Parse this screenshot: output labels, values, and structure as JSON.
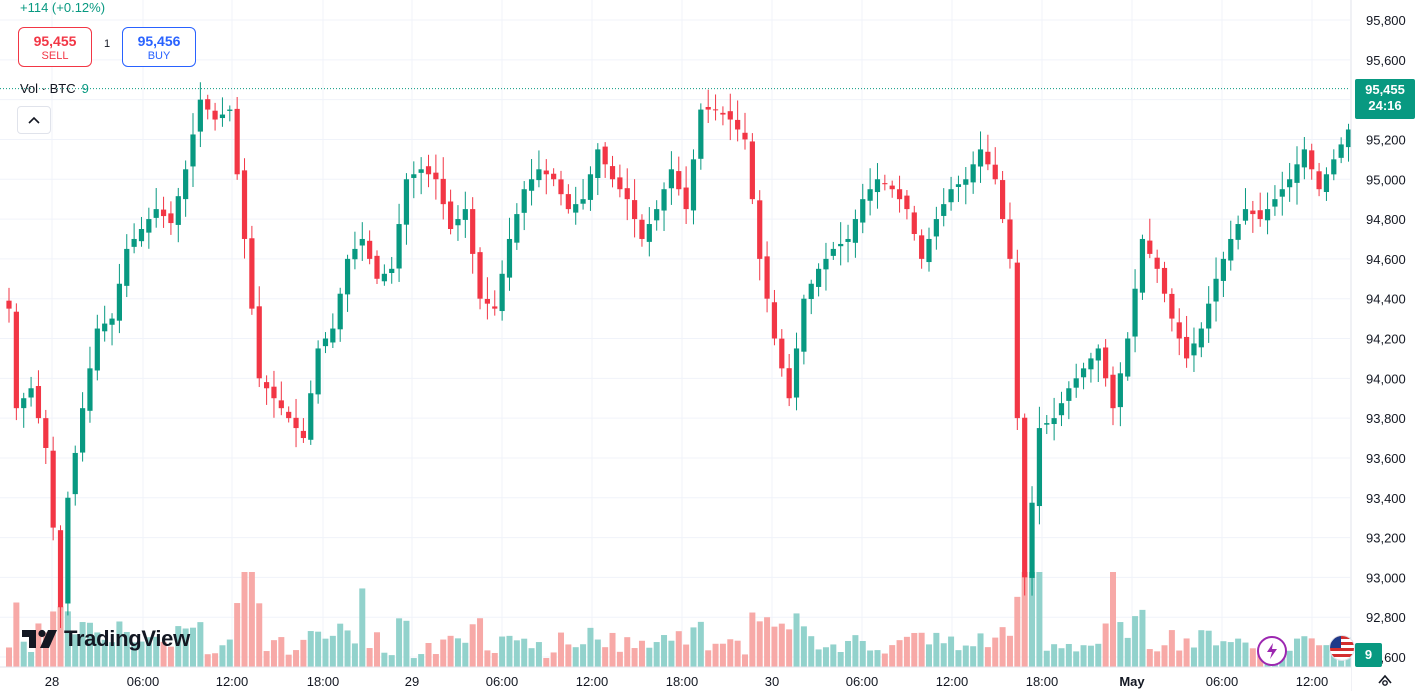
{
  "header": {
    "change": "+114 (+0.12%)",
    "sell_price": "95,455",
    "sell_label": "SELL",
    "buy_price": "95,456",
    "buy_label": "BUY",
    "spread": "1"
  },
  "volume_legend": {
    "label": "Vol · BTC",
    "value": "9"
  },
  "price_axis": {
    "ticks": [
      "95,800",
      "95,600",
      "95,400",
      "95,200",
      "95,000",
      "94,800",
      "94,600",
      "94,400",
      "94,200",
      "94,000",
      "93,800",
      "93,600",
      "93,400",
      "93,200",
      "93,000",
      "92,800",
      "92,600"
    ],
    "last_price": "95,455",
    "countdown": "24:16",
    "volume_tag": "9"
  },
  "time_axis": {
    "ticks": [
      "28",
      "06:00",
      "12:00",
      "18:00",
      "29",
      "06:00",
      "12:00",
      "18:00",
      "30",
      "06:00",
      "12:00",
      "18:00",
      "May",
      "06:00",
      "12:00"
    ]
  },
  "branding": {
    "logo_text": "TradingView"
  },
  "colors": {
    "up": "#089981",
    "down": "#f23645",
    "up_volume": "#92d2cc",
    "down_volume": "#f7a9a7",
    "grid": "#f0f3fa"
  },
  "icons": [
    "collapse-chevron-up-icon",
    "tradingview-logo-icon",
    "lightning-bolt-icon",
    "us-flag-icon",
    "settings-icon"
  ],
  "chart_data": {
    "type": "candlestick",
    "title": "",
    "ylim": [
      92600,
      95800
    ],
    "interval_minutes": 30,
    "last_price": 95455,
    "close_anchors": [
      [
        0,
        94350
      ],
      [
        1,
        93850
      ],
      [
        3,
        93950
      ],
      [
        5,
        93650
      ],
      [
        7,
        92850
      ],
      [
        8,
        93400
      ],
      [
        10,
        93850
      ],
      [
        12,
        94250
      ],
      [
        14,
        94300
      ],
      [
        16,
        94650
      ],
      [
        18,
        94750
      ],
      [
        20,
        94850
      ],
      [
        22,
        94780
      ],
      [
        24,
        95050
      ],
      [
        26,
        95400
      ],
      [
        28,
        95300
      ],
      [
        30,
        95350
      ],
      [
        32,
        94700
      ],
      [
        34,
        94000
      ],
      [
        36,
        93900
      ],
      [
        38,
        93800
      ],
      [
        40,
        93700
      ],
      [
        42,
        94150
      ],
      [
        44,
        94250
      ],
      [
        46,
        94600
      ],
      [
        48,
        94700
      ],
      [
        50,
        94500
      ],
      [
        52,
        94550
      ],
      [
        54,
        95000
      ],
      [
        56,
        95050
      ],
      [
        58,
        95000
      ],
      [
        60,
        94750
      ],
      [
        62,
        94850
      ],
      [
        64,
        94400
      ],
      [
        66,
        94350
      ],
      [
        68,
        94700
      ],
      [
        70,
        94950
      ],
      [
        72,
        95050
      ],
      [
        74,
        95000
      ],
      [
        76,
        94850
      ],
      [
        78,
        94900
      ],
      [
        80,
        95150
      ],
      [
        82,
        95000
      ],
      [
        84,
        94900
      ],
      [
        86,
        94700
      ],
      [
        88,
        94850
      ],
      [
        90,
        95050
      ],
      [
        92,
        94850
      ],
      [
        94,
        95350
      ],
      [
        96,
        95350
      ],
      [
        98,
        95300
      ],
      [
        100,
        95200
      ],
      [
        102,
        94600
      ],
      [
        104,
        94200
      ],
      [
        106,
        93900
      ],
      [
        108,
        94400
      ],
      [
        110,
        94550
      ],
      [
        112,
        94650
      ],
      [
        114,
        94700
      ],
      [
        116,
        94900
      ],
      [
        118,
        95000
      ],
      [
        120,
        94950
      ],
      [
        122,
        94850
      ],
      [
        124,
        94600
      ],
      [
        126,
        94800
      ],
      [
        128,
        94950
      ],
      [
        130,
        95000
      ],
      [
        132,
        95150
      ],
      [
        134,
        95000
      ],
      [
        136,
        94600
      ],
      [
        138,
        93000
      ],
      [
        140,
        93750
      ],
      [
        142,
        93800
      ],
      [
        144,
        93950
      ],
      [
        146,
        94050
      ],
      [
        148,
        94150
      ],
      [
        150,
        93850
      ],
      [
        152,
        94200
      ],
      [
        154,
        94700
      ],
      [
        156,
        94550
      ],
      [
        158,
        94300
      ],
      [
        160,
        94100
      ],
      [
        162,
        94250
      ],
      [
        164,
        94500
      ],
      [
        166,
        94700
      ],
      [
        168,
        94850
      ],
      [
        170,
        94800
      ],
      [
        172,
        94900
      ],
      [
        174,
        95000
      ],
      [
        176,
        95150
      ],
      [
        178,
        94950
      ],
      [
        180,
        95100
      ],
      [
        182,
        95250
      ],
      [
        184,
        95455
      ]
    ],
    "volume_range": [
      0,
      14
    ]
  }
}
